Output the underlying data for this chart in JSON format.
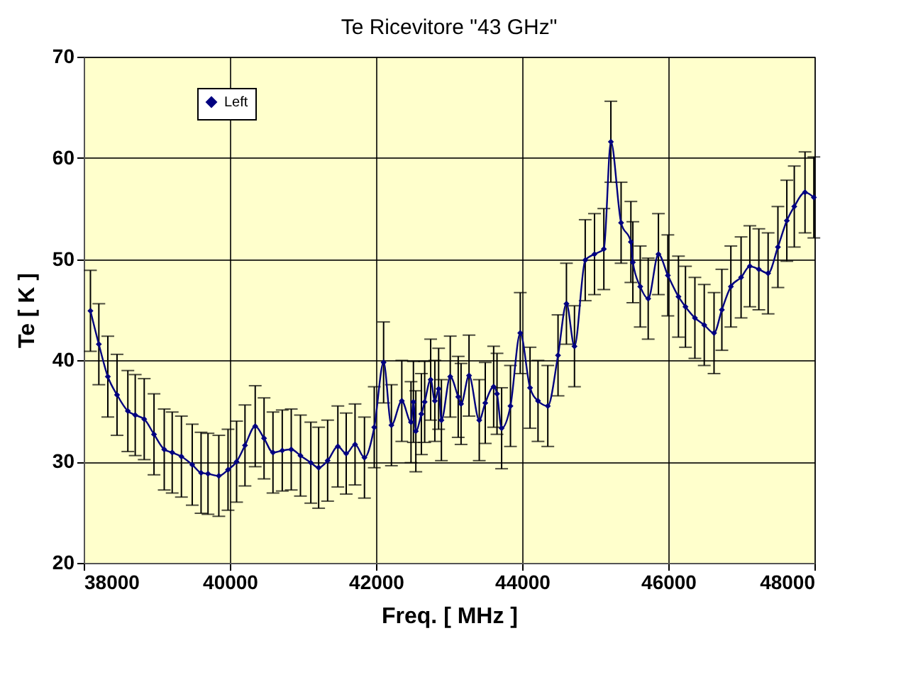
{
  "chart_data": {
    "type": "line",
    "title": "Te Ricevitore \"43 GHz\"",
    "xlabel": "Freq.  [ MHz ]",
    "ylabel": "Te   [ K ]",
    "xlim": [
      38000,
      48000
    ],
    "xticks": [
      38000,
      40000,
      42000,
      44000,
      46000,
      48000
    ],
    "ylim": [
      20,
      70
    ],
    "yticks": [
      20,
      30,
      40,
      50,
      60,
      70
    ],
    "grid": true,
    "legend": "top left",
    "marker": "diamond",
    "line_style": "solid",
    "series": [
      {
        "name": "Left",
        "color": "#000080",
        "x": [
          38092,
          38207,
          38330,
          38456,
          38604,
          38705,
          38828,
          38962,
          39102,
          39211,
          39337,
          39485,
          39606,
          39701,
          39849,
          39975,
          40092,
          40207,
          40347,
          40468,
          40590,
          40717,
          40840,
          40966,
          41108,
          41215,
          41338,
          41478,
          41592,
          41713,
          41842,
          41976,
          42104,
          42211,
          42353,
          42479,
          42512,
          42545,
          42621,
          42666,
          42748,
          42805,
          42857,
          42895,
          43016,
          43125,
          43164,
          43273,
          43413,
          43495,
          43610,
          43656,
          43719,
          43840,
          43974,
          44108,
          44217,
          44351,
          44491,
          44606,
          44716,
          44863,
          44990,
          45118,
          45214,
          45354,
          45488,
          45515,
          45616,
          45725,
          45865,
          45994,
          46139,
          46235,
          46364,
          46492,
          46626,
          46733,
          46856,
          46996,
          47116,
          47239,
          47366,
          47500,
          47622,
          47724,
          47871,
          47992
        ],
        "values": [
          44.9,
          41.6,
          38.4,
          36.6,
          35.0,
          34.6,
          34.2,
          32.7,
          31.2,
          30.9,
          30.5,
          29.7,
          28.9,
          28.8,
          28.6,
          29.2,
          30.0,
          31.6,
          33.5,
          32.3,
          30.9,
          31.1,
          31.2,
          30.6,
          29.9,
          29.4,
          30.1,
          31.5,
          30.8,
          31.7,
          30.4,
          33.4,
          39.8,
          33.6,
          36.0,
          33.9,
          35.9,
          33.0,
          34.7,
          35.9,
          38.1,
          36.0,
          37.2,
          34.1,
          38.4,
          36.4,
          35.7,
          38.5,
          34.1,
          35.8,
          37.4,
          36.7,
          33.3,
          35.5,
          42.7,
          37.3,
          36.0,
          35.5,
          40.5,
          45.6,
          41.4,
          49.9,
          50.5,
          51.0,
          61.6,
          53.6,
          51.7,
          49.7,
          47.3,
          46.1,
          50.5,
          48.4,
          46.3,
          45.3,
          44.2,
          43.5,
          42.7,
          45.0,
          47.3,
          48.2,
          49.3,
          49.0,
          48.6,
          51.2,
          53.8,
          55.2,
          56.6,
          56.1
        ],
        "errors": [
          4,
          4,
          4,
          4,
          4,
          4,
          4,
          4,
          4,
          4,
          4,
          4,
          4,
          4,
          4,
          4,
          4,
          4,
          4,
          4,
          4,
          4,
          4,
          4,
          4,
          4,
          4,
          4,
          4,
          4,
          4,
          4,
          4,
          4,
          4,
          4,
          4,
          4,
          4,
          4,
          4,
          4,
          4,
          4,
          4,
          4,
          4,
          4,
          4,
          4,
          4,
          4,
          4,
          4,
          4,
          4,
          4,
          4,
          4,
          4,
          4,
          4,
          4,
          4,
          4,
          4,
          4,
          4,
          4,
          4,
          4,
          4,
          4,
          4,
          4,
          4,
          4,
          4,
          4,
          4,
          4,
          4,
          4,
          4,
          4,
          4,
          4,
          4
        ]
      }
    ]
  }
}
